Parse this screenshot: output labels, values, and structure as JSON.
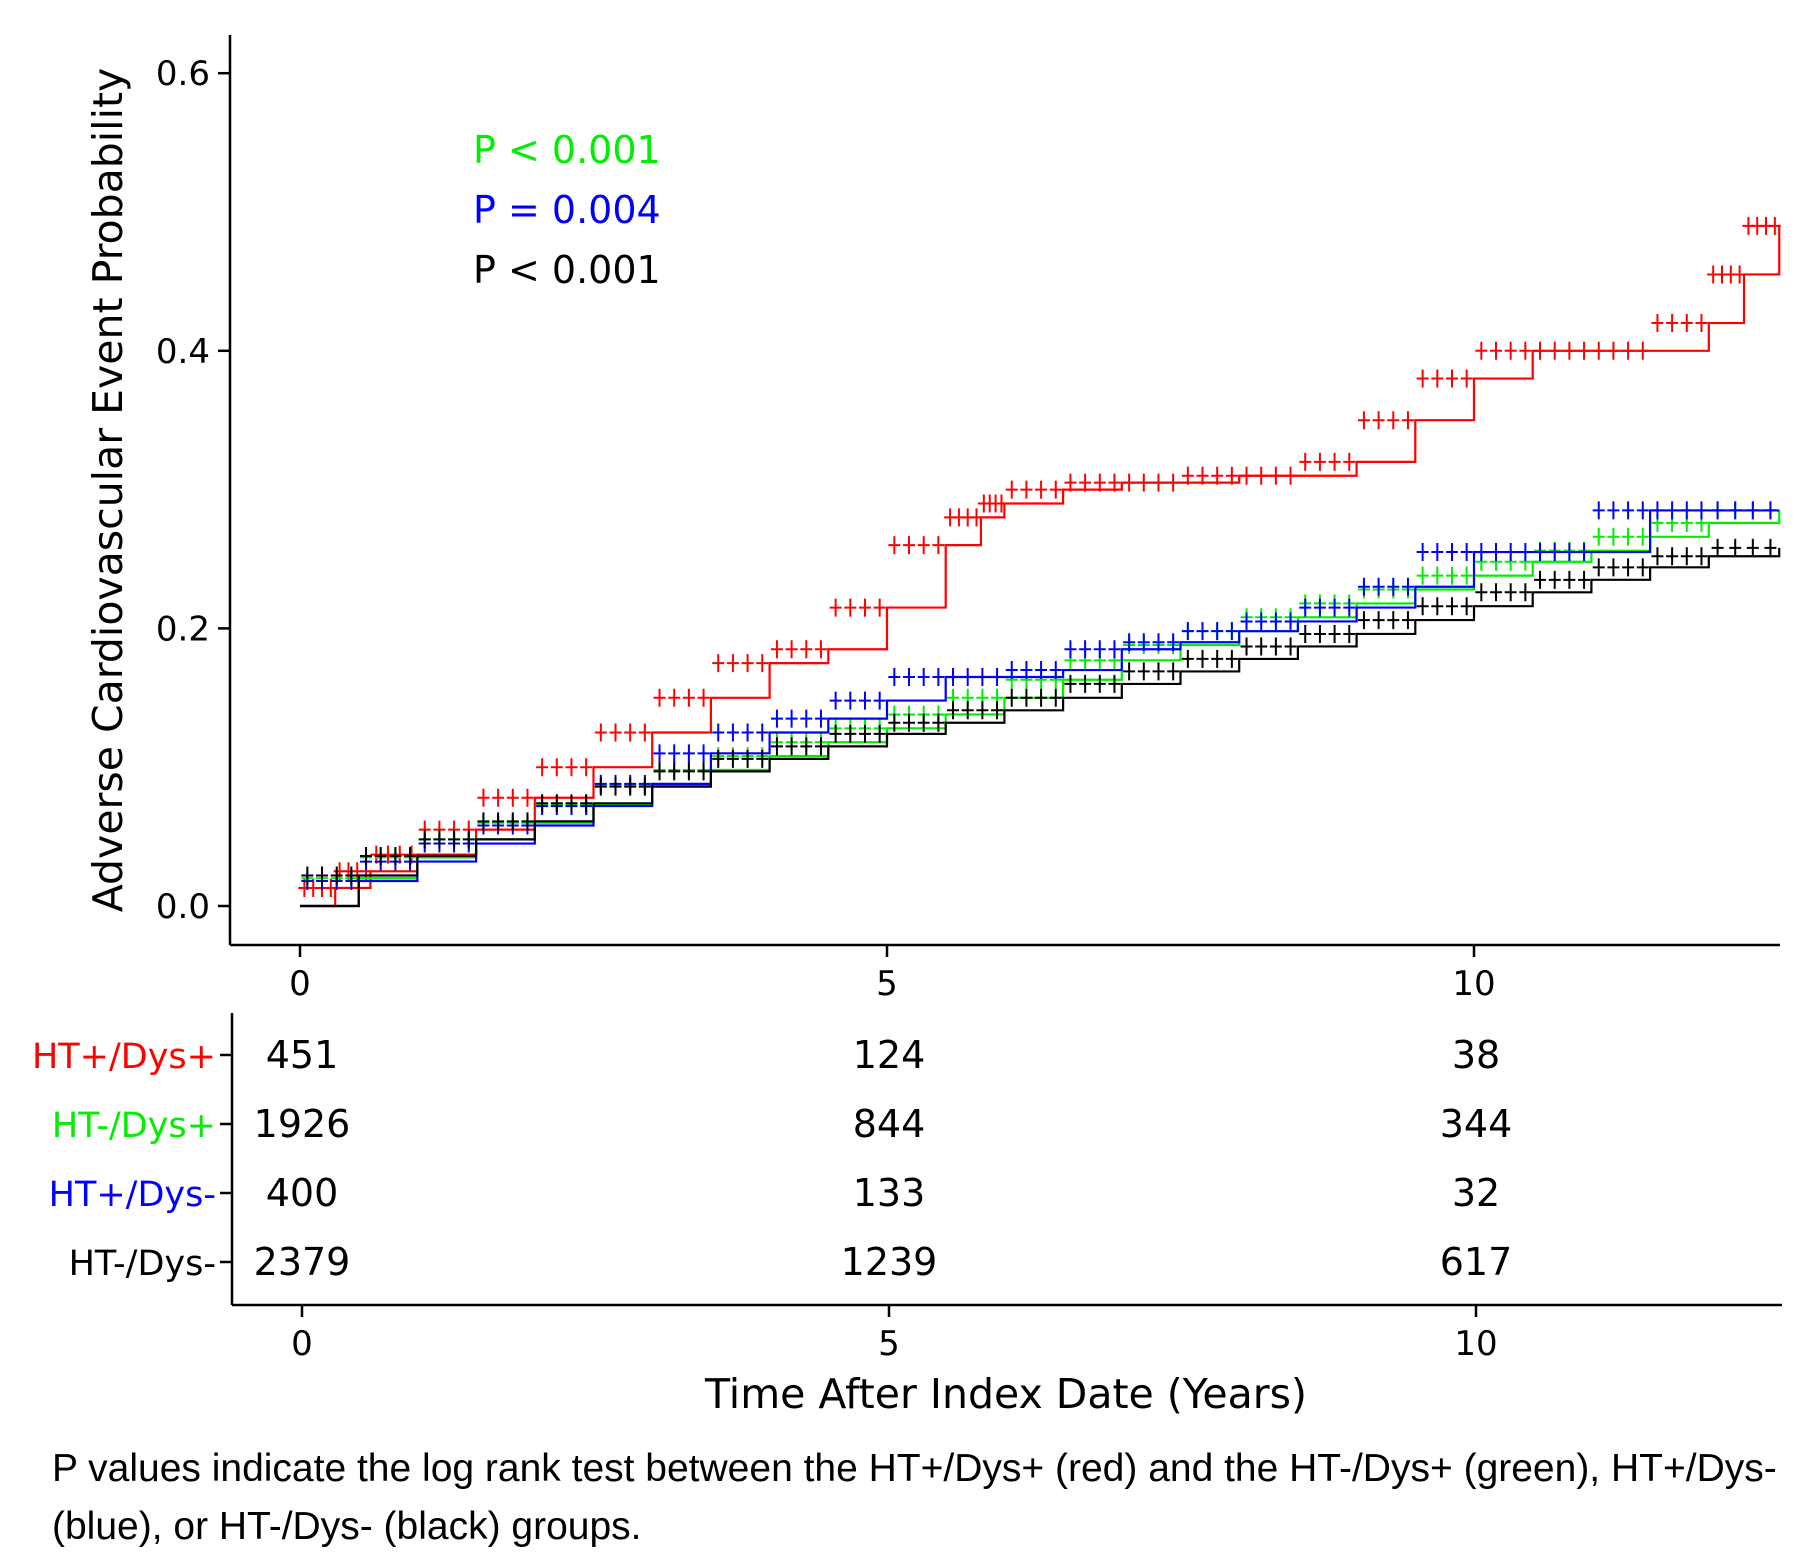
{
  "caption": "P values indicate the log rank test between the HT+/Dys+ (red) and the HT-/Dys+ (green), HT+/Dys- (blue), or HT-/Dys- (black) groups.",
  "colors": {
    "HT+/Dys+": "#ff0000",
    "HT-/Dys+": "#00ee00",
    "HT+/Dys-": "#0000ff",
    "HT-/Dys-": "#000000"
  },
  "chart_data": {
    "type": "line",
    "subtype": "kaplan-meier cumulative incidence (step)",
    "title": "",
    "xlabel": "Time After Index Date (Years)",
    "ylabel": "Adverse Cardiovascular Event Probability",
    "xlim": [
      0,
      12.6
    ],
    "ylim": [
      0,
      0.62
    ],
    "xticks": [
      0,
      5,
      10
    ],
    "yticks": [
      0.0,
      0.2,
      0.4,
      0.6
    ],
    "xtick_labels": [
      "0",
      "5",
      "10"
    ],
    "ytick_labels": [
      "0.0",
      "0.2",
      "0.4",
      "0.6"
    ],
    "grid": false,
    "annotations": [
      {
        "text": "P < 0.001",
        "color": "#00ee00"
      },
      {
        "text": "P = 0.004",
        "color": "#0000ff"
      },
      {
        "text": "P < 0.001",
        "color": "#000000"
      }
    ],
    "series": [
      {
        "name": "HT+/Dys+",
        "color": "#ff0000",
        "x": [
          0,
          0.3,
          0.6,
          1.0,
          1.5,
          2.0,
          2.5,
          3.0,
          3.5,
          4.0,
          4.5,
          5.0,
          5.5,
          5.8,
          6.0,
          6.5,
          7.0,
          7.5,
          8.0,
          8.5,
          9.0,
          9.5,
          10.0,
          10.5,
          11.0,
          11.5,
          12.0,
          12.3,
          12.6
        ],
        "y": [
          0,
          0.013,
          0.025,
          0.037,
          0.055,
          0.078,
          0.1,
          0.125,
          0.15,
          0.175,
          0.185,
          0.215,
          0.26,
          0.28,
          0.29,
          0.3,
          0.305,
          0.305,
          0.31,
          0.31,
          0.32,
          0.35,
          0.38,
          0.4,
          0.4,
          0.4,
          0.42,
          0.455,
          0.49
        ]
      },
      {
        "name": "HT-/Dys+",
        "color": "#00ee00",
        "x": [
          0,
          0.5,
          1.0,
          1.5,
          2.0,
          2.5,
          3.0,
          3.5,
          4.0,
          4.5,
          5.0,
          5.5,
          6.0,
          6.5,
          7.0,
          7.5,
          8.0,
          8.5,
          9.0,
          9.5,
          10.0,
          10.5,
          11.0,
          11.5,
          12.0,
          12.6
        ],
        "y": [
          0,
          0.02,
          0.035,
          0.048,
          0.06,
          0.073,
          0.087,
          0.098,
          0.108,
          0.118,
          0.128,
          0.138,
          0.15,
          0.163,
          0.177,
          0.188,
          0.198,
          0.208,
          0.218,
          0.228,
          0.238,
          0.248,
          0.256,
          0.266,
          0.276,
          0.285
        ]
      },
      {
        "name": "HT+/Dys-",
        "color": "#0000ff",
        "x": [
          0,
          0.5,
          1.0,
          1.5,
          2.0,
          2.5,
          3.0,
          3.5,
          4.0,
          4.5,
          5.0,
          5.5,
          6.0,
          6.5,
          7.0,
          7.5,
          8.0,
          8.5,
          9.0,
          9.5,
          10.0,
          10.5,
          11.0,
          11.5,
          12.0,
          12.6
        ],
        "y": [
          0,
          0.018,
          0.032,
          0.045,
          0.058,
          0.072,
          0.088,
          0.11,
          0.125,
          0.135,
          0.148,
          0.165,
          0.165,
          0.17,
          0.185,
          0.19,
          0.198,
          0.205,
          0.215,
          0.23,
          0.255,
          0.255,
          0.255,
          0.285,
          0.285,
          0.285
        ]
      },
      {
        "name": "HT-/Dys-",
        "color": "#000000",
        "x": [
          0,
          0.5,
          1.0,
          1.5,
          2.0,
          2.5,
          3.0,
          3.5,
          4.0,
          4.5,
          5.0,
          5.5,
          6.0,
          6.5,
          7.0,
          7.5,
          8.0,
          8.5,
          9.0,
          9.5,
          10.0,
          10.5,
          11.0,
          11.5,
          12.0,
          12.6
        ],
        "y": [
          0,
          0.022,
          0.036,
          0.048,
          0.061,
          0.074,
          0.086,
          0.097,
          0.106,
          0.115,
          0.124,
          0.132,
          0.141,
          0.15,
          0.16,
          0.169,
          0.178,
          0.187,
          0.196,
          0.206,
          0.216,
          0.226,
          0.235,
          0.244,
          0.252,
          0.258
        ]
      }
    ],
    "risk_table": {
      "times": [
        0,
        5,
        10
      ],
      "rows": [
        {
          "group": "HT+/Dys+",
          "color": "#ff0000",
          "counts": [
            "451",
            "124",
            "38"
          ]
        },
        {
          "group": "HT-/Dys+",
          "color": "#00ee00",
          "counts": [
            "1926",
            "844",
            "344"
          ]
        },
        {
          "group": "HT+/Dys-",
          "color": "#0000ff",
          "counts": [
            "400",
            "133",
            "32"
          ]
        },
        {
          "group": "HT-/Dys-",
          "color": "#000000",
          "counts": [
            "2379",
            "1239",
            "617"
          ]
        }
      ]
    }
  }
}
